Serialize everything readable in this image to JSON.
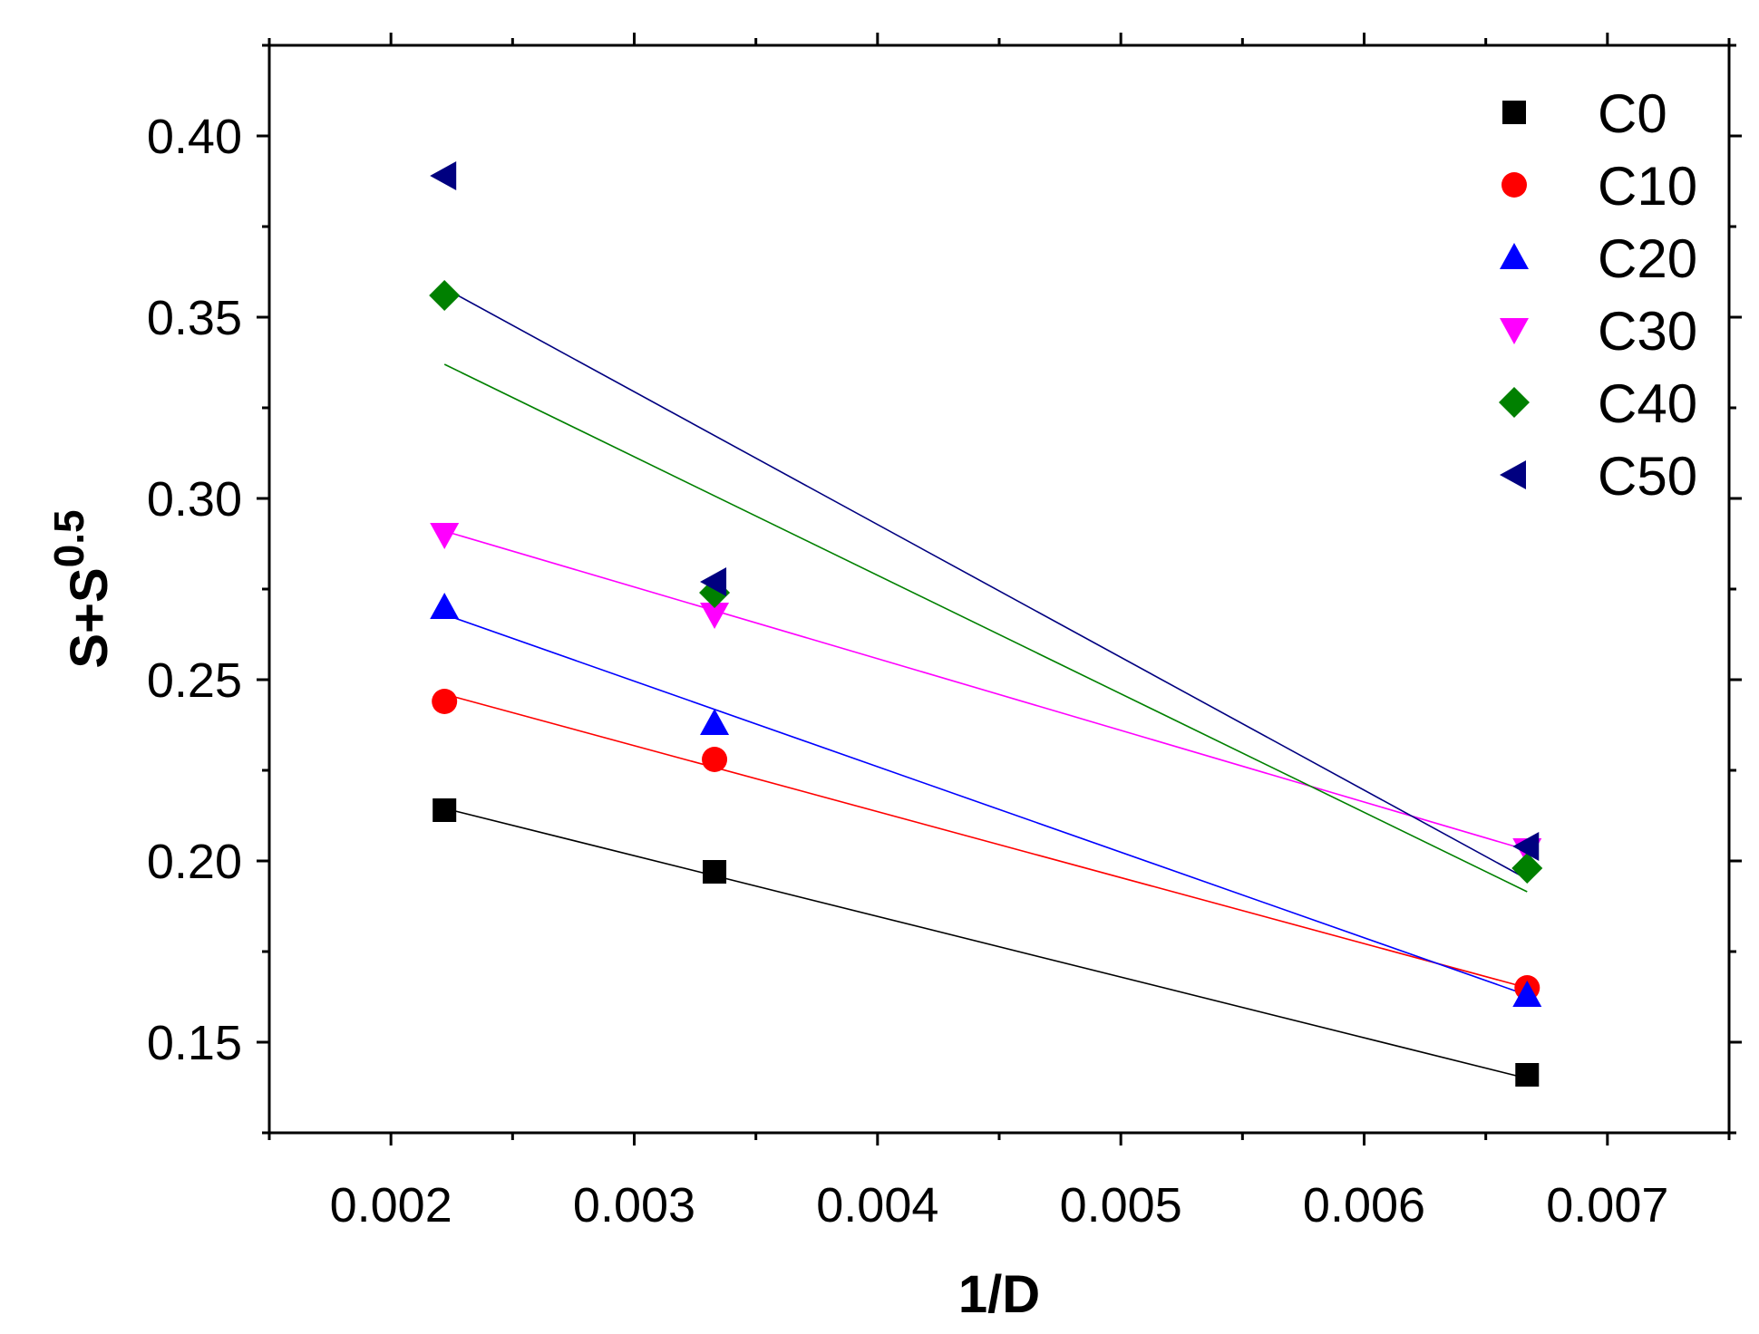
{
  "chart_data": {
    "type": "scatter",
    "title": "",
    "xlabel": "1/D",
    "ylabel_base": "S+S",
    "ylabel_sup": "0.5",
    "xlim": [
      0.0015,
      0.0075
    ],
    "ylim": [
      0.125,
      0.425
    ],
    "xticks": [
      {
        "value": 0.002,
        "label": "0.002"
      },
      {
        "value": 0.003,
        "label": "0.003"
      },
      {
        "value": 0.004,
        "label": "0.004"
      },
      {
        "value": 0.005,
        "label": "0.005"
      },
      {
        "value": 0.006,
        "label": "0.006"
      },
      {
        "value": 0.007,
        "label": "0.007"
      }
    ],
    "yticks": [
      {
        "value": 0.15,
        "label": "0.15"
      },
      {
        "value": 0.2,
        "label": "0.20"
      },
      {
        "value": 0.25,
        "label": "0.25"
      },
      {
        "value": 0.3,
        "label": "0.30"
      },
      {
        "value": 0.35,
        "label": "0.35"
      },
      {
        "value": 0.4,
        "label": "0.40"
      }
    ],
    "legend_position": "top-right",
    "series": [
      {
        "name": "C0",
        "color": "#000000",
        "marker": "square",
        "x": [
          0.00222,
          0.00333,
          0.00667
        ],
        "y": [
          0.214,
          0.197,
          0.141
        ],
        "fit": {
          "x": [
            0.00222,
            0.00667
          ],
          "y": [
            0.2145,
            0.14
          ]
        }
      },
      {
        "name": "C10",
        "color": "#ff0000",
        "marker": "circle",
        "x": [
          0.00222,
          0.00333,
          0.00667
        ],
        "y": [
          0.244,
          0.228,
          0.165
        ],
        "fit": {
          "x": [
            0.00222,
            0.00667
          ],
          "y": [
            0.246,
            0.165
          ]
        }
      },
      {
        "name": "C20",
        "color": "#0000ff",
        "marker": "triangle-up",
        "x": [
          0.00222,
          0.00333,
          0.00667
        ],
        "y": [
          0.27,
          0.238,
          0.163
        ],
        "fit": {
          "x": [
            0.00222,
            0.00667
          ],
          "y": [
            0.268,
            0.163
          ]
        }
      },
      {
        "name": "C30",
        "color": "#ff00ff",
        "marker": "triangle-down",
        "x": [
          0.00222,
          0.00333,
          0.00667
        ],
        "y": [
          0.29,
          0.268,
          0.203
        ],
        "fit": {
          "x": [
            0.00222,
            0.00667
          ],
          "y": [
            0.291,
            0.203
          ]
        }
      },
      {
        "name": "C40",
        "color": "#008000",
        "marker": "diamond",
        "x": [
          0.00222,
          0.00333,
          0.00667
        ],
        "y": [
          0.356,
          0.274,
          0.198
        ],
        "fit": {
          "x": [
            0.00222,
            0.00667
          ],
          "y": [
            0.337,
            0.1915
          ]
        }
      },
      {
        "name": "C50",
        "color": "#000080",
        "marker": "triangle-left",
        "x": [
          0.00222,
          0.00333,
          0.00667
        ],
        "y": [
          0.389,
          0.277,
          0.204
        ],
        "fit": {
          "x": [
            0.00222,
            0.00667
          ],
          "y": [
            0.358,
            0.195
          ]
        }
      }
    ]
  }
}
